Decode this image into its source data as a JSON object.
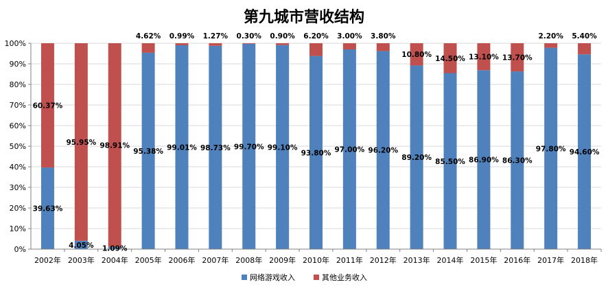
{
  "chart_data": {
    "type": "bar",
    "stacked": true,
    "percent_stacked": true,
    "title": "第九城市营收结构",
    "xlabel": "",
    "ylabel": "",
    "ylim": [
      0,
      100
    ],
    "y_ticks": [
      "0%",
      "10%",
      "20%",
      "30%",
      "40%",
      "50%",
      "60%",
      "70%",
      "80%",
      "90%",
      "100%"
    ],
    "grid": true,
    "legend_position": "bottom",
    "categories": [
      "2002年",
      "2003年",
      "2004年",
      "2005年",
      "2006年",
      "2007年",
      "2008年",
      "2009年",
      "2010年",
      "2011年",
      "2012年",
      "2013年",
      "2014年",
      "2015年",
      "2016年",
      "2017年",
      "2018年"
    ],
    "series": [
      {
        "name": "网络游戏收入",
        "color": "#4f81bd",
        "values": [
          39.63,
          4.05,
          1.09,
          95.38,
          99.01,
          98.73,
          99.7,
          99.1,
          93.8,
          97.0,
          96.2,
          89.2,
          85.5,
          86.9,
          86.3,
          97.8,
          94.6
        ],
        "labels": [
          "39.63%",
          "4.05%",
          "1.09%",
          "95.38%",
          "99.01%",
          "98.73%",
          "99.70%",
          "99.10%",
          "93.80%",
          "97.00%",
          "96.20%",
          "89.20%",
          "85.50%",
          "86.90%",
          "86.30%",
          "97.80%",
          "94.60%"
        ]
      },
      {
        "name": "其他业务收入",
        "color": "#c0504d",
        "values": [
          60.37,
          95.95,
          98.91,
          4.62,
          0.99,
          1.27,
          0.3,
          0.9,
          6.2,
          3.0,
          3.8,
          10.8,
          14.5,
          13.1,
          13.7,
          2.2,
          5.4
        ],
        "labels": [
          "60.37%",
          "95.95%",
          "98.91%",
          "4.62%",
          "0.99%",
          "1.27%",
          "0.30%",
          "0.90%",
          "6.20%",
          "3.00%",
          "3.80%",
          "10.80%",
          "14.50%",
          "13.10%",
          "13.70%",
          "2.20%",
          "5.40%"
        ]
      }
    ]
  }
}
